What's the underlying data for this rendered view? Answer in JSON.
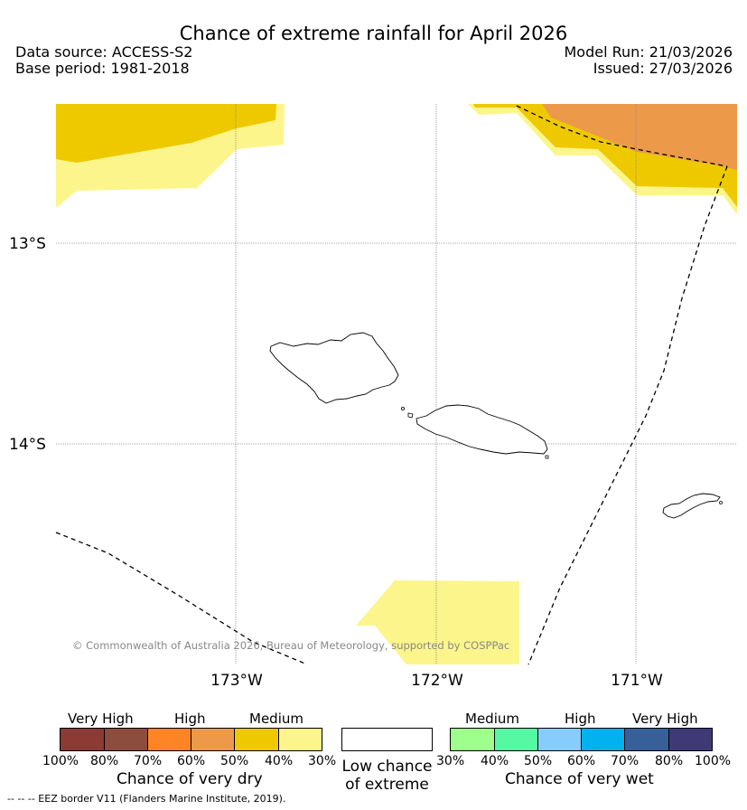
{
  "title": "Chance of extreme rainfall for April 2026",
  "header": {
    "data_source": "Data source: ACCESS-S2",
    "base_period": "Base period: 1981-2018",
    "model_run": "Model Run: 21/03/2026",
    "issued": "Issued: 27/03/2026"
  },
  "map": {
    "lat_labels": [
      "13°S",
      "14°S"
    ],
    "lon_labels": [
      "173°W",
      "172°W",
      "171°W"
    ],
    "copyright": "© Commonwealth of Australia 2026, Bureau of Meteorology, supported by COSPPac"
  },
  "colors": {
    "very_dry_high_end": "#8b3a34",
    "very_dry_80": "#8c4c3e",
    "high_70": "#ff8426",
    "high_60": "#ec9a4a",
    "medium_50": "#eec900",
    "medium_40": "#fcf58c",
    "wet_30": "#9eff8c",
    "wet_40": "#57f8a4",
    "wet_50": "#87cdfb",
    "wet_60": "#00b3ee",
    "wet_70": "#376099",
    "wet_80": "#3f3a75"
  },
  "legend": {
    "dry": {
      "categories": [
        "Very High",
        "High",
        "Medium"
      ],
      "ticks": [
        "100%",
        "80%",
        "70%",
        "60%",
        "50%",
        "40%",
        "30%"
      ],
      "label": "Chance of very dry"
    },
    "low": {
      "line1": "Low chance",
      "line2": "of extreme"
    },
    "wet": {
      "categories": [
        "Medium",
        "High",
        "Very High"
      ],
      "ticks": [
        "30%",
        "40%",
        "50%",
        "60%",
        "70%",
        "80%",
        "100%"
      ],
      "label": "Chance of very wet"
    }
  },
  "eez_note": "--  --  -- EEZ border V11 (Flanders Marine Institute, 2019)."
}
